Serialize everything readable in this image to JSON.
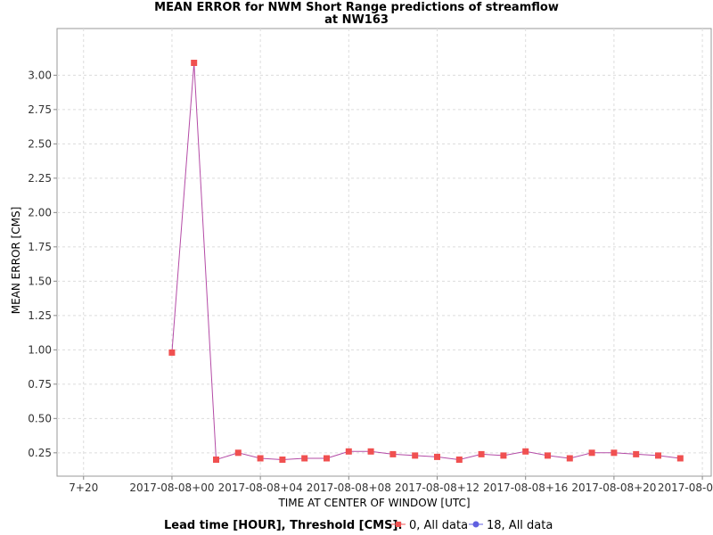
{
  "chart_data": {
    "type": "line",
    "title": [
      "MEAN ERROR for NWM Short Range predictions of streamflow",
      "at NW163"
    ],
    "xlabel": "TIME AT CENTER OF WINDOW [UTC]",
    "ylabel": "MEAN ERROR [CMS]",
    "x_tick_labels": [
      "7+20",
      "2017-08-08+00",
      "2017-08-08+04",
      "2017-08-08+08",
      "2017-08-08+12",
      "2017-08-08+16",
      "2017-08-08+20",
      "2017-08-0"
    ],
    "x_tick_hours": [
      -4,
      0,
      4,
      8,
      12,
      16,
      20,
      24
    ],
    "xlim_hours": [
      -5.2,
      24.4
    ],
    "y_tick_labels": [
      "0.25",
      "0.50",
      "0.75",
      "1.00",
      "1.25",
      "1.50",
      "1.75",
      "2.00",
      "2.25",
      "2.50",
      "2.75",
      "3.00"
    ],
    "ylim": [
      0.08,
      3.34
    ],
    "grid": true,
    "legend": {
      "title": "Lead time [HOUR], Threshold [CMS]:",
      "placement": "bottom",
      "entries": [
        {
          "label": "0, All data",
          "marker": "square",
          "color": "#f05050"
        },
        {
          "label": "18, All data",
          "marker": "circle",
          "color": "#6060e0"
        }
      ]
    },
    "series": [
      {
        "name": "0, All data",
        "color": "#f05050",
        "line_color": "#b44ba6",
        "x_hours": [
          0,
          1,
          2,
          3,
          4,
          5,
          6,
          7,
          8,
          9,
          10,
          11,
          12,
          13,
          14,
          15,
          16,
          17,
          18,
          19,
          20,
          21,
          22,
          23
        ],
        "y": [
          0.98,
          3.09,
          0.2,
          0.25,
          0.21,
          0.2,
          0.21,
          0.21,
          0.26,
          0.26,
          0.24,
          0.23,
          0.22,
          0.2,
          0.24,
          0.23,
          0.26,
          0.23,
          0.21,
          0.25,
          0.25,
          0.24,
          0.23,
          0.21
        ]
      }
    ]
  }
}
